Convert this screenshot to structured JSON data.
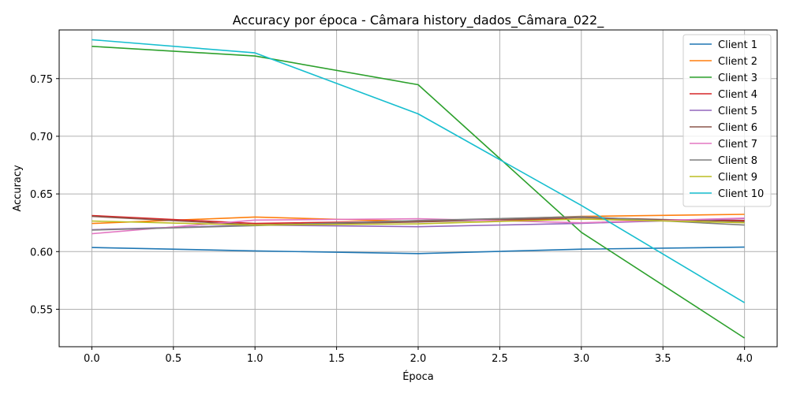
{
  "chart_data": {
    "type": "line",
    "title": "Accuracy por época - Câmara history_dados_Câmara_022_",
    "xlabel": "Época",
    "ylabel": "Accuracy",
    "x": [
      0,
      1,
      2,
      3,
      4
    ],
    "xlim": [
      -0.2,
      4.2
    ],
    "ylim": [
      0.5175,
      0.7922
    ],
    "xticks": [
      "0.0",
      "0.5",
      "1.0",
      "1.5",
      "2.0",
      "2.5",
      "3.0",
      "3.5",
      "4.0"
    ],
    "yticks": [
      "0.55",
      "0.60",
      "0.65",
      "0.70",
      "0.75"
    ],
    "grid": true,
    "legend_position": "top-right",
    "series": [
      {
        "name": "Client 1",
        "color": "#1f77b4",
        "values": [
          0.6035,
          0.6006,
          0.5983,
          0.6021,
          0.6039
        ]
      },
      {
        "name": "Client 2",
        "color": "#ff7f0e",
        "values": [
          0.6244,
          0.63,
          0.626,
          0.6305,
          0.6323
        ]
      },
      {
        "name": "Client 3",
        "color": "#2ca02c",
        "values": [
          0.778,
          0.7696,
          0.7447,
          0.6167,
          0.525
        ]
      },
      {
        "name": "Client 4",
        "color": "#d62728",
        "values": [
          0.6313,
          0.6244,
          0.6265,
          0.6282,
          0.627
        ]
      },
      {
        "name": "Client 5",
        "color": "#9467bd",
        "values": [
          0.619,
          0.623,
          0.6216,
          0.6245,
          0.6287
        ]
      },
      {
        "name": "Client 6",
        "color": "#8c564b",
        "values": [
          0.6305,
          0.6232,
          0.6257,
          0.6296,
          0.6261
        ]
      },
      {
        "name": "Client 7",
        "color": "#e377c2",
        "values": [
          0.6155,
          0.6273,
          0.6285,
          0.625,
          0.629
        ]
      },
      {
        "name": "Client 8",
        "color": "#7f7f7f",
        "values": [
          0.6186,
          0.6225,
          0.627,
          0.6303,
          0.623
        ]
      },
      {
        "name": "Client 9",
        "color": "#bcbd22",
        "values": [
          0.6265,
          0.623,
          0.624,
          0.6282,
          0.625
        ]
      },
      {
        "name": "Client 10",
        "color": "#17becf",
        "values": [
          0.7837,
          0.7723,
          0.7194,
          0.64,
          0.5557
        ]
      }
    ]
  }
}
